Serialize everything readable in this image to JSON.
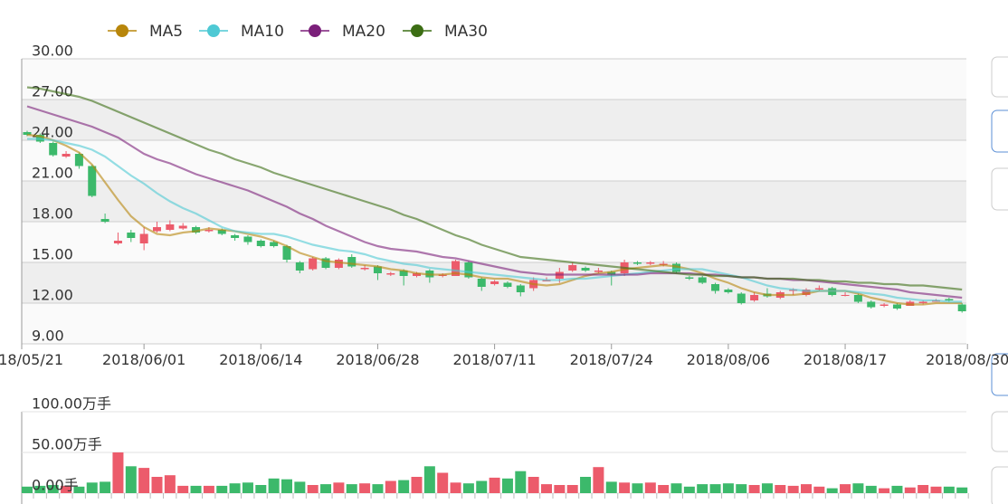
{
  "chart_data": [
    {
      "type": "candlestick",
      "categories": [
        "2018/05/21",
        null,
        null,
        null,
        null,
        null,
        null,
        null,
        null,
        "2018/06/01",
        null,
        null,
        null,
        null,
        null,
        null,
        null,
        null,
        "2018/06/14",
        null,
        null,
        null,
        null,
        null,
        null,
        null,
        null,
        "2018/06/28",
        null,
        null,
        null,
        null,
        null,
        null,
        null,
        null,
        "2018/07/11",
        null,
        null,
        null,
        null,
        null,
        null,
        null,
        null,
        "2018/07/24",
        null,
        null,
        null,
        null,
        null,
        null,
        null,
        null,
        "2018/08/06",
        null,
        null,
        null,
        null,
        null,
        null,
        null,
        null,
        "2018/08/17",
        null,
        null,
        null,
        null,
        null,
        null,
        null,
        null,
        "2018/08/30"
      ],
      "open": [
        24.6,
        24.4,
        23.8,
        22.8,
        23.0,
        22.1,
        18.2,
        16.4,
        17.2,
        16.4,
        17.3,
        17.4,
        17.5,
        17.6,
        17.3,
        17.4,
        17.0,
        16.9,
        16.6,
        16.5,
        16.2,
        15.0,
        14.5,
        15.3,
        14.6,
        15.4,
        14.5,
        14.7,
        14.1,
        14.4,
        14.0,
        14.4,
        14.0,
        14.0,
        15.0,
        13.8,
        13.4,
        13.5,
        13.3,
        13.1,
        13.6,
        13.8,
        14.4,
        14.6,
        14.3,
        14.3,
        14.2,
        15.0,
        14.9,
        14.8,
        14.9,
        13.9,
        13.9,
        13.4,
        13.0,
        12.7,
        12.2,
        12.7,
        12.4,
        12.9,
        12.6,
        13.0,
        13.1,
        12.6,
        12.6,
        12.1,
        11.8,
        11.9,
        11.8,
        12.0,
        12.1,
        12.3,
        11.9
      ],
      "close": [
        24.4,
        23.9,
        22.9,
        23.0,
        22.1,
        19.9,
        18.0,
        16.6,
        16.8,
        17.1,
        17.6,
        17.8,
        17.7,
        17.2,
        17.4,
        17.1,
        16.8,
        16.5,
        16.2,
        16.2,
        15.2,
        14.4,
        15.3,
        14.6,
        15.2,
        14.7,
        14.6,
        14.2,
        14.2,
        14.0,
        14.2,
        13.9,
        14.1,
        15.1,
        13.9,
        13.2,
        13.6,
        13.2,
        12.8,
        13.7,
        13.7,
        14.3,
        14.8,
        14.4,
        14.4,
        14.1,
        15.0,
        14.9,
        15.0,
        14.9,
        14.3,
        13.8,
        13.5,
        12.9,
        12.8,
        12.0,
        12.6,
        12.5,
        12.8,
        13.0,
        13.0,
        13.1,
        12.6,
        12.6,
        12.1,
        11.7,
        11.9,
        11.6,
        12.1,
        12.1,
        12.2,
        12.2,
        11.4
      ],
      "high": [
        24.7,
        24.5,
        23.9,
        23.2,
        23.1,
        22.2,
        18.6,
        17.2,
        17.4,
        17.6,
        18.0,
        18.1,
        17.9,
        17.7,
        17.6,
        17.5,
        17.1,
        17.0,
        16.7,
        16.6,
        16.3,
        15.1,
        15.4,
        15.4,
        15.3,
        15.6,
        14.8,
        14.8,
        14.3,
        14.5,
        14.3,
        14.5,
        14.2,
        15.2,
        15.1,
        13.9,
        13.7,
        13.6,
        13.4,
        13.9,
        13.9,
        14.6,
        15.0,
        14.7,
        14.6,
        14.4,
        15.2,
        15.1,
        15.1,
        15.1,
        15.0,
        14.0,
        14.0,
        13.5,
        13.1,
        12.8,
        12.8,
        13.1,
        12.9,
        13.1,
        13.1,
        13.3,
        13.2,
        12.8,
        12.7,
        12.2,
        12.0,
        12.0,
        12.2,
        12.2,
        12.3,
        12.4,
        12.0
      ],
      "low": [
        24.3,
        23.8,
        22.8,
        22.7,
        21.9,
        19.8,
        17.9,
        16.3,
        16.5,
        15.9,
        17.2,
        17.3,
        17.4,
        17.1,
        17.2,
        17.0,
        16.6,
        16.3,
        16.1,
        16.1,
        15.0,
        14.2,
        14.4,
        14.5,
        14.5,
        14.6,
        14.4,
        13.7,
        14.0,
        13.3,
        13.9,
        13.5,
        13.9,
        14.0,
        13.8,
        12.9,
        13.3,
        13.1,
        12.5,
        12.9,
        13.6,
        13.5,
        14.3,
        14.3,
        14.2,
        13.3,
        14.0,
        14.8,
        14.8,
        14.7,
        14.2,
        13.7,
        13.4,
        12.7,
        12.7,
        11.9,
        12.1,
        12.4,
        12.3,
        12.6,
        12.5,
        12.9,
        12.5,
        12.5,
        12.0,
        11.6,
        11.7,
        11.5,
        11.8,
        11.9,
        12.1,
        12.1,
        11.3
      ],
      "up_color": "#ec5b6b",
      "down_color": "#3cb96b",
      "ylim": [
        9,
        30
      ],
      "yticks": [
        {
          "value": 9,
          "label": "9.00"
        },
        {
          "value": 12,
          "label": "12.00"
        },
        {
          "value": 15,
          "label": "15.00"
        },
        {
          "value": 18,
          "label": "18.00"
        },
        {
          "value": 21,
          "label": "21.00"
        },
        {
          "value": 24,
          "label": "24.00"
        },
        {
          "value": 27,
          "label": "27.00"
        },
        {
          "value": 30,
          "label": "30.00"
        }
      ],
      "grid": true,
      "series": [
        {
          "name": "MA5",
          "color": "#b8860b",
          "values": [
            24.4,
            24.3,
            24.0,
            23.6,
            23.1,
            22.2,
            20.9,
            19.6,
            18.4,
            17.6,
            17.1,
            17.0,
            17.2,
            17.3,
            17.5,
            17.4,
            17.3,
            17.1,
            16.9,
            16.6,
            16.2,
            15.7,
            15.4,
            15.1,
            15.0,
            14.9,
            14.8,
            14.7,
            14.5,
            14.4,
            14.2,
            14.1,
            14.1,
            14.2,
            14.1,
            13.9,
            13.8,
            13.8,
            13.6,
            13.4,
            13.3,
            13.4,
            13.7,
            14.0,
            14.2,
            14.3,
            14.5,
            14.6,
            14.7,
            14.8,
            14.7,
            14.5,
            14.2,
            13.8,
            13.5,
            13.1,
            12.8,
            12.6,
            12.6,
            12.6,
            12.7,
            12.9,
            12.9,
            12.9,
            12.7,
            12.4,
            12.2,
            12.0,
            11.9,
            11.9,
            12.0,
            12.0,
            12.0
          ]
        },
        {
          "name": "MA10",
          "color": "#4ec9d4",
          "values": [
            24.1,
            24.1,
            24.0,
            23.8,
            23.6,
            23.3,
            22.8,
            22.1,
            21.4,
            20.8,
            20.1,
            19.5,
            19.0,
            18.6,
            18.1,
            17.6,
            17.3,
            17.2,
            17.1,
            17.1,
            16.9,
            16.6,
            16.3,
            16.1,
            15.9,
            15.8,
            15.6,
            15.3,
            15.1,
            14.9,
            14.8,
            14.6,
            14.5,
            14.4,
            14.3,
            14.2,
            14.1,
            14.0,
            13.9,
            13.8,
            13.7,
            13.7,
            13.8,
            13.8,
            13.9,
            14.0,
            14.1,
            14.2,
            14.3,
            14.4,
            14.5,
            14.5,
            14.5,
            14.3,
            14.1,
            13.9,
            13.6,
            13.3,
            13.1,
            13.0,
            12.9,
            12.9,
            12.9,
            12.9,
            12.8,
            12.7,
            12.6,
            12.4,
            12.3,
            12.2,
            12.2,
            12.1,
            12.1
          ]
        },
        {
          "name": "MA20",
          "color": "#7b1f7a",
          "values": [
            26.5,
            26.2,
            25.9,
            25.6,
            25.3,
            25.0,
            24.6,
            24.2,
            23.6,
            23.0,
            22.6,
            22.3,
            21.9,
            21.5,
            21.2,
            20.9,
            20.6,
            20.3,
            19.9,
            19.5,
            19.1,
            18.6,
            18.2,
            17.7,
            17.3,
            16.9,
            16.5,
            16.2,
            16.0,
            15.9,
            15.8,
            15.6,
            15.4,
            15.3,
            15.1,
            14.9,
            14.7,
            14.5,
            14.3,
            14.2,
            14.1,
            14.1,
            14.1,
            14.1,
            14.1,
            14.1,
            14.1,
            14.1,
            14.2,
            14.2,
            14.2,
            14.2,
            14.1,
            14.1,
            14.0,
            13.9,
            13.9,
            13.8,
            13.8,
            13.7,
            13.7,
            13.6,
            13.5,
            13.4,
            13.3,
            13.2,
            13.1,
            13.0,
            12.8,
            12.7,
            12.6,
            12.5,
            12.4
          ]
        },
        {
          "name": "MA30",
          "color": "#3c6e14",
          "values": [
            27.9,
            27.8,
            27.6,
            27.4,
            27.2,
            26.9,
            26.5,
            26.1,
            25.7,
            25.3,
            24.9,
            24.5,
            24.1,
            23.7,
            23.3,
            23.0,
            22.6,
            22.3,
            22.0,
            21.6,
            21.3,
            21.0,
            20.7,
            20.4,
            20.1,
            19.8,
            19.5,
            19.2,
            18.9,
            18.5,
            18.2,
            17.8,
            17.4,
            17.0,
            16.7,
            16.3,
            16.0,
            15.7,
            15.4,
            15.3,
            15.2,
            15.1,
            15.0,
            14.9,
            14.8,
            14.7,
            14.6,
            14.5,
            14.4,
            14.3,
            14.2,
            14.1,
            14.1,
            14.0,
            14.0,
            13.9,
            13.9,
            13.8,
            13.8,
            13.8,
            13.7,
            13.7,
            13.6,
            13.6,
            13.5,
            13.5,
            13.4,
            13.4,
            13.3,
            13.3,
            13.2,
            13.1,
            13.0
          ]
        }
      ]
    },
    {
      "type": "bar",
      "values": [
        8,
        9,
        10,
        9,
        8,
        13,
        14,
        50,
        33,
        31,
        20,
        22,
        9,
        9,
        9,
        9,
        12,
        13,
        10,
        18,
        17,
        14,
        10,
        11,
        13,
        11,
        12,
        11,
        15,
        16,
        20,
        33,
        25,
        13,
        12,
        15,
        19,
        18,
        27,
        20,
        11,
        10,
        10,
        20,
        32,
        14,
        13,
        12,
        13,
        10,
        12,
        8,
        11,
        11,
        12,
        11,
        10,
        12,
        10,
        9,
        11,
        8,
        6,
        11,
        12,
        9,
        6,
        9,
        7,
        10,
        8,
        8,
        7
      ],
      "ylim": [
        0,
        100
      ],
      "yticks": [
        {
          "value": 0,
          "label": "0.00手"
        },
        {
          "value": 50,
          "label": "50.00万手"
        },
        {
          "value": 100,
          "label": "100.00万手"
        }
      ],
      "grid": true
    }
  ]
}
